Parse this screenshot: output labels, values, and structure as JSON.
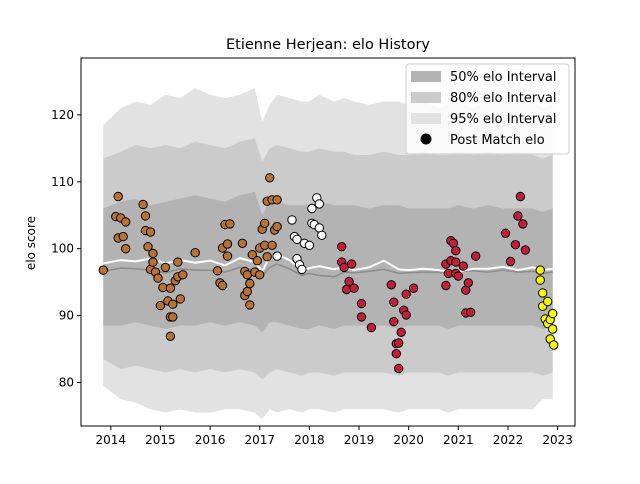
{
  "chart_data": {
    "type": "scatter",
    "title": "Etienne Herjean: elo History",
    "xlabel": "",
    "ylabel": "elo score",
    "xlim": [
      2013.4,
      2023.35
    ],
    "ylim": [
      73.5,
      128.5
    ],
    "x_ticks": [
      2014,
      2015,
      2016,
      2017,
      2018,
      2019,
      2020,
      2021,
      2022,
      2023
    ],
    "y_ticks": [
      80,
      90,
      100,
      110,
      120
    ],
    "grid": false,
    "legend_position": "top-right",
    "legend": [
      {
        "label": "50% elo Interval",
        "kind": "band",
        "color": "#b3b3b3"
      },
      {
        "label": "80% elo Interval",
        "kind": "band",
        "color": "#cbcbcb"
      },
      {
        "label": "95% elo Interval",
        "kind": "band",
        "color": "#e2e2e2"
      },
      {
        "label": "Post Match elo",
        "kind": "marker",
        "color": "#000000"
      }
    ],
    "band_colors": {
      "p95": "#e2e2e2",
      "p80": "#cbcbcb",
      "p50": "#b3b3b3",
      "mean": "#ffffff",
      "median_line": "#8c8c8c"
    },
    "bands": {
      "x": [
        2013.85,
        2014.2,
        2014.5,
        2014.8,
        2015.1,
        2015.4,
        2015.7,
        2016.0,
        2016.3,
        2016.6,
        2016.9,
        2017.05,
        2017.2,
        2017.35,
        2017.6,
        2017.85,
        2018.0,
        2018.2,
        2018.5,
        2018.7,
        2018.9,
        2019.2,
        2019.5,
        2019.8,
        2020.0,
        2020.3,
        2020.6,
        2020.8,
        2021.0,
        2021.3,
        2021.6,
        2021.9,
        2022.2,
        2022.5,
        2022.7,
        2022.9
      ],
      "p95_upper": [
        118.5,
        121.0,
        122.0,
        121.5,
        123.0,
        122.5,
        124.0,
        123.0,
        122.5,
        123.0,
        124.0,
        119.0,
        121.5,
        123.0,
        122.5,
        122.0,
        122.0,
        123.0,
        122.0,
        122.5,
        122.0,
        121.5,
        122.0,
        122.0,
        121.5,
        122.0,
        121.0,
        121.5,
        122.0,
        121.0,
        122.0,
        121.5,
        122.0,
        122.0,
        121.0,
        121.5
      ],
      "p80_upper": [
        113.5,
        114.5,
        115.5,
        115.0,
        115.5,
        115.0,
        116.0,
        115.5,
        115.0,
        116.0,
        116.5,
        113.0,
        115.0,
        115.5,
        115.0,
        114.5,
        114.5,
        115.0,
        114.5,
        114.5,
        114.0,
        114.0,
        114.5,
        114.0,
        114.0,
        114.5,
        114.0,
        114.0,
        114.5,
        114.0,
        114.5,
        114.0,
        114.5,
        114.0,
        113.5,
        114.0
      ],
      "p50_upper": [
        106.0,
        107.0,
        107.5,
        106.5,
        107.0,
        107.5,
        108.0,
        107.5,
        107.0,
        108.0,
        108.5,
        105.0,
        107.0,
        107.0,
        106.5,
        106.5,
        106.5,
        107.0,
        106.5,
        106.5,
        106.5,
        106.0,
        106.5,
        106.5,
        106.0,
        106.0,
        106.0,
        106.0,
        106.5,
        106.0,
        106.5,
        106.0,
        106.0,
        106.0,
        105.5,
        106.0
      ],
      "mean": [
        97.8,
        98.3,
        98.1,
        98.5,
        97.8,
        98.3,
        97.9,
        98.2,
        97.5,
        98.6,
        98.0,
        96.6,
        98.8,
        99.1,
        98.3,
        96.8,
        97.1,
        97.4,
        96.9,
        97.3,
        96.8,
        97.2,
        98.2,
        96.9,
        96.8,
        97.0,
        96.8,
        96.6,
        96.6,
        97.0,
        97.0,
        97.3,
        96.8,
        97.2,
        96.8,
        97.0
      ],
      "median": [
        96.6,
        97.1,
        97.0,
        96.8,
        96.4,
        97.0,
        96.8,
        96.8,
        96.5,
        97.2,
        96.8,
        95.9,
        97.2,
        97.7,
        97.0,
        96.0,
        96.3,
        96.0,
        95.8,
        96.5,
        96.4,
        96.6,
        96.9,
        96.3,
        96.4,
        96.5,
        96.5,
        96.2,
        96.6,
        96.7,
        96.5,
        96.8,
        96.5,
        96.6,
        96.3,
        96.5
      ],
      "p50_lower": [
        88.5,
        88.5,
        89.0,
        88.5,
        88.0,
        88.5,
        88.5,
        89.0,
        88.5,
        89.0,
        88.5,
        87.5,
        89.0,
        89.0,
        88.5,
        88.0,
        88.0,
        88.5,
        88.0,
        88.5,
        88.5,
        88.5,
        88.5,
        88.0,
        88.5,
        88.5,
        88.5,
        88.0,
        88.5,
        88.5,
        88.5,
        88.5,
        88.5,
        88.5,
        88.0,
        88.5
      ],
      "p80_lower": [
        83.5,
        82.0,
        82.5,
        82.0,
        81.5,
        82.0,
        81.5,
        82.0,
        81.5,
        82.0,
        81.5,
        80.5,
        81.5,
        82.0,
        81.5,
        81.0,
        81.5,
        81.5,
        81.0,
        81.5,
        81.5,
        81.5,
        81.5,
        81.0,
        81.5,
        81.5,
        81.5,
        81.0,
        81.5,
        81.5,
        81.5,
        81.5,
        81.5,
        81.5,
        81.0,
        81.5
      ],
      "p95_lower": [
        79.5,
        77.5,
        77.0,
        76.0,
        75.5,
        76.0,
        75.5,
        75.5,
        76.0,
        76.0,
        75.5,
        74.5,
        76.0,
        75.5,
        76.0,
        75.5,
        76.0,
        76.0,
        75.5,
        76.0,
        76.0,
        76.0,
        76.0,
        75.5,
        76.0,
        76.0,
        76.0,
        75.5,
        76.0,
        76.0,
        76.0,
        76.0,
        76.0,
        76.0,
        77.5,
        77.5
      ]
    },
    "series": [
      {
        "color": "#b87333",
        "points": [
          [
            2013.85,
            96.8
          ],
          [
            2014.15,
            107.8
          ],
          [
            2014.1,
            104.8
          ],
          [
            2014.2,
            104.6
          ],
          [
            2014.15,
            101.6
          ],
          [
            2014.25,
            101.8
          ],
          [
            2014.3,
            104.0
          ],
          [
            2014.3,
            100.0
          ],
          [
            2014.65,
            106.6
          ],
          [
            2014.7,
            104.9
          ],
          [
            2014.7,
            102.7
          ],
          [
            2014.75,
            100.3
          ],
          [
            2014.8,
            102.5
          ],
          [
            2014.8,
            96.9
          ],
          [
            2014.85,
            98.0
          ],
          [
            2014.85,
            99.3
          ],
          [
            2014.9,
            96.5
          ],
          [
            2014.95,
            95.6
          ],
          [
            2015.0,
            91.5
          ],
          [
            2015.05,
            94.2
          ],
          [
            2015.1,
            97.2
          ],
          [
            2015.15,
            92.2
          ],
          [
            2015.2,
            94.1
          ],
          [
            2015.2,
            89.8
          ],
          [
            2015.25,
            91.7
          ],
          [
            2015.25,
            89.8
          ],
          [
            2015.2,
            86.9
          ],
          [
            2015.3,
            95.2
          ],
          [
            2015.35,
            95.8
          ],
          [
            2015.35,
            98.0
          ],
          [
            2015.4,
            92.5
          ],
          [
            2015.45,
            96.1
          ],
          [
            2015.7,
            99.4
          ],
          [
            2016.15,
            96.7
          ],
          [
            2016.2,
            94.9
          ],
          [
            2016.25,
            94.5
          ],
          [
            2016.25,
            100.1
          ],
          [
            2016.3,
            103.6
          ],
          [
            2016.35,
            100.7
          ],
          [
            2016.35,
            98.9
          ],
          [
            2016.4,
            103.7
          ],
          [
            2016.65,
            100.8
          ],
          [
            2016.7,
            96.6
          ],
          [
            2016.7,
            93.0
          ],
          [
            2016.75,
            93.6
          ],
          [
            2016.75,
            96.1
          ],
          [
            2016.8,
            94.8
          ],
          [
            2016.8,
            91.6
          ],
          [
            2016.85,
            99.1
          ],
          [
            2016.9,
            96.5
          ],
          [
            2016.95,
            98.2
          ],
          [
            2017.0,
            100.1
          ],
          [
            2017.0,
            96.1
          ],
          [
            2017.05,
            102.9
          ],
          [
            2017.1,
            100.5
          ],
          [
            2017.1,
            103.8
          ],
          [
            2017.15,
            107.1
          ],
          [
            2017.15,
            98.8
          ],
          [
            2017.2,
            110.6
          ],
          [
            2017.25,
            107.3
          ],
          [
            2017.3,
            102.8
          ],
          [
            2017.35,
            103.3
          ],
          [
            2017.35,
            107.3
          ],
          [
            2017.25,
            100.5
          ]
        ]
      },
      {
        "color": "#ffffff",
        "points": [
          [
            2017.35,
            98.9
          ],
          [
            2017.65,
            104.3
          ],
          [
            2017.7,
            101.8
          ],
          [
            2017.75,
            101.4
          ],
          [
            2017.75,
            98.5
          ],
          [
            2017.8,
            97.6
          ],
          [
            2017.85,
            96.9
          ],
          [
            2017.9,
            100.8
          ],
          [
            2018.0,
            100.5
          ],
          [
            2018.05,
            103.8
          ],
          [
            2018.05,
            106.0
          ],
          [
            2018.1,
            103.6
          ],
          [
            2018.15,
            107.6
          ],
          [
            2018.2,
            106.7
          ],
          [
            2018.2,
            103.1
          ],
          [
            2018.25,
            102.0
          ]
        ]
      },
      {
        "color": "#c41e3a",
        "points": [
          [
            2018.65,
            100.3
          ],
          [
            2018.65,
            98.0
          ],
          [
            2018.7,
            97.2
          ],
          [
            2018.75,
            93.9
          ],
          [
            2018.8,
            95.1
          ],
          [
            2018.85,
            97.7
          ],
          [
            2018.9,
            94.1
          ],
          [
            2019.05,
            91.8
          ],
          [
            2019.05,
            89.8
          ],
          [
            2019.25,
            88.2
          ],
          [
            2019.65,
            94.6
          ],
          [
            2019.7,
            92.0
          ],
          [
            2019.7,
            89.1
          ],
          [
            2019.75,
            85.8
          ],
          [
            2019.75,
            84.3
          ],
          [
            2019.8,
            85.9
          ],
          [
            2019.8,
            82.1
          ],
          [
            2019.85,
            87.5
          ],
          [
            2019.9,
            90.8
          ],
          [
            2019.95,
            93.2
          ],
          [
            2019.95,
            90.1
          ],
          [
            2020.1,
            94.1
          ],
          [
            2020.75,
            97.7
          ],
          [
            2020.75,
            94.5
          ],
          [
            2020.8,
            96.3
          ],
          [
            2020.85,
            98.2
          ],
          [
            2020.85,
            101.2
          ],
          [
            2020.9,
            100.8
          ],
          [
            2020.95,
            99.7
          ],
          [
            2020.95,
            98.0
          ],
          [
            2020.95,
            96.3
          ],
          [
            2021.0,
            95.9
          ],
          [
            2021.1,
            97.4
          ],
          [
            2021.15,
            93.8
          ],
          [
            2021.15,
            90.4
          ],
          [
            2021.2,
            94.9
          ],
          [
            2021.25,
            90.5
          ],
          [
            2021.35,
            98.9
          ],
          [
            2021.95,
            102.3
          ],
          [
            2022.05,
            98.1
          ],
          [
            2022.15,
            100.6
          ],
          [
            2022.2,
            104.9
          ],
          [
            2022.25,
            107.8
          ],
          [
            2022.3,
            103.7
          ],
          [
            2022.35,
            99.8
          ]
        ]
      },
      {
        "color": "#ffff00",
        "points": [
          [
            2022.65,
            96.8
          ],
          [
            2022.65,
            95.3
          ],
          [
            2022.7,
            93.4
          ],
          [
            2022.7,
            91.4
          ],
          [
            2022.75,
            89.5
          ],
          [
            2022.8,
            88.8
          ],
          [
            2022.8,
            92.1
          ],
          [
            2022.85,
            89.4
          ],
          [
            2022.85,
            86.5
          ],
          [
            2022.9,
            90.3
          ],
          [
            2022.9,
            88.0
          ],
          [
            2022.92,
            85.6
          ]
        ]
      }
    ]
  }
}
